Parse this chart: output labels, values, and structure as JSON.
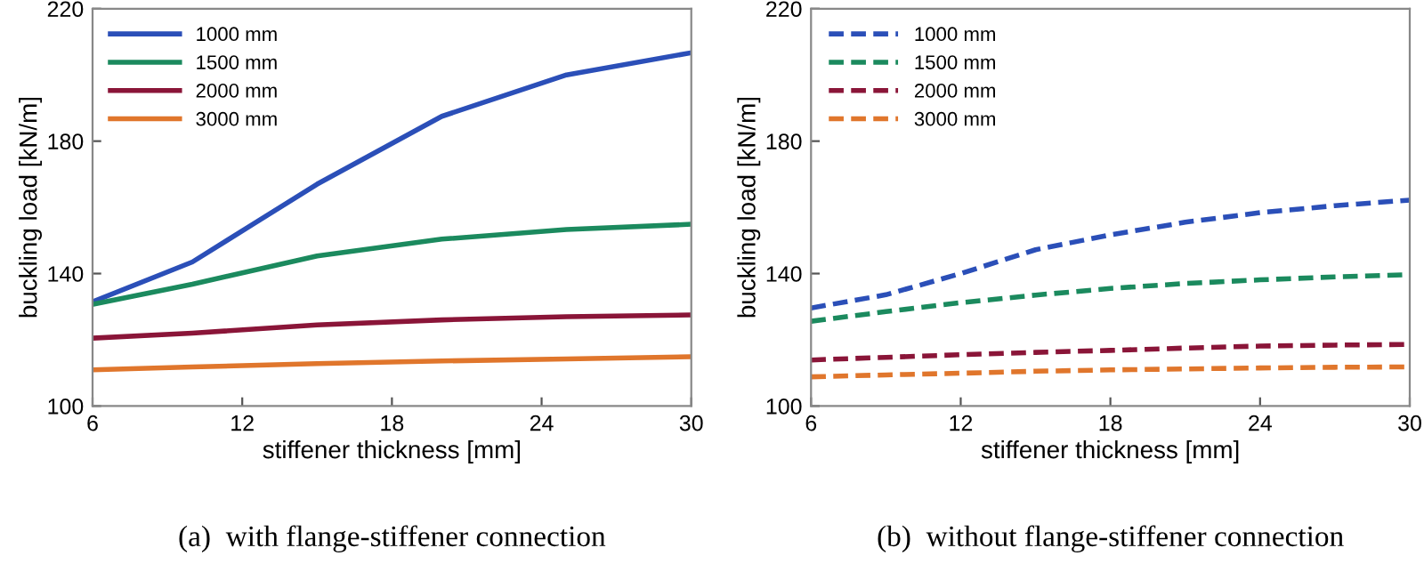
{
  "chart_data": [
    {
      "type": "line",
      "xlabel": "stiffener thickness [mm]",
      "ylabel": "buckling load [kN/m]",
      "annotations": [
        "(a)  with flange-stiffener connection"
      ],
      "xlim": [
        6,
        30
      ],
      "ylim": [
        100,
        220
      ],
      "xticks": [
        6,
        12,
        18,
        24,
        30
      ],
      "yticks": [
        100,
        140,
        180,
        220
      ],
      "grid": false,
      "legend": "top left",
      "line_style": "solid",
      "x": [
        6,
        10,
        15,
        20,
        25,
        30
      ],
      "series": [
        {
          "name": "1000 mm",
          "color": "#2b4fb8",
          "values": [
            131.5,
            143.5,
            167,
            187.5,
            200,
            206.7
          ]
        },
        {
          "name": "1500 mm",
          "color": "#1b8a5e",
          "values": [
            130.7,
            136.8,
            145.3,
            150.4,
            153.3,
            154.9
          ]
        },
        {
          "name": "2000 mm",
          "color": "#8a1538",
          "values": [
            120.5,
            122,
            124.5,
            126,
            127,
            127.5
          ]
        },
        {
          "name": "3000 mm",
          "color": "#e0762c",
          "values": [
            110.9,
            111.8,
            112.8,
            113.6,
            114.2,
            114.9
          ]
        }
      ]
    },
    {
      "type": "line",
      "xlabel": "stiffener thickness [mm]",
      "ylabel": "buckling load [kN/m]",
      "annotations": [
        "(b)  without flange-stiffener connection"
      ],
      "xlim": [
        6,
        30
      ],
      "ylim": [
        100,
        220
      ],
      "xticks": [
        6,
        12,
        18,
        24,
        30
      ],
      "yticks": [
        100,
        140,
        180,
        220
      ],
      "grid": false,
      "legend": "top left",
      "line_style": "dashed",
      "x": [
        6,
        9,
        12,
        15,
        18,
        21,
        24,
        27,
        30
      ],
      "series": [
        {
          "name": "1000 mm",
          "color": "#2b4fb8",
          "values": [
            129.6,
            133.6,
            140,
            147.2,
            151.7,
            155.5,
            158.4,
            160.5,
            162.2
          ]
        },
        {
          "name": "1500 mm",
          "color": "#1b8a5e",
          "values": [
            125.6,
            128.5,
            131.2,
            133.5,
            135.5,
            137,
            138.1,
            139,
            139.7
          ]
        },
        {
          "name": "2000 mm",
          "color": "#8a1538",
          "values": [
            113.9,
            114.7,
            115.5,
            116.2,
            116.8,
            117.5,
            118.1,
            118.4,
            118.6
          ]
        },
        {
          "name": "3000 mm",
          "color": "#e0762c",
          "values": [
            108.8,
            109.4,
            109.9,
            110.5,
            110.9,
            111.2,
            111.5,
            111.7,
            111.8
          ]
        }
      ]
    }
  ]
}
